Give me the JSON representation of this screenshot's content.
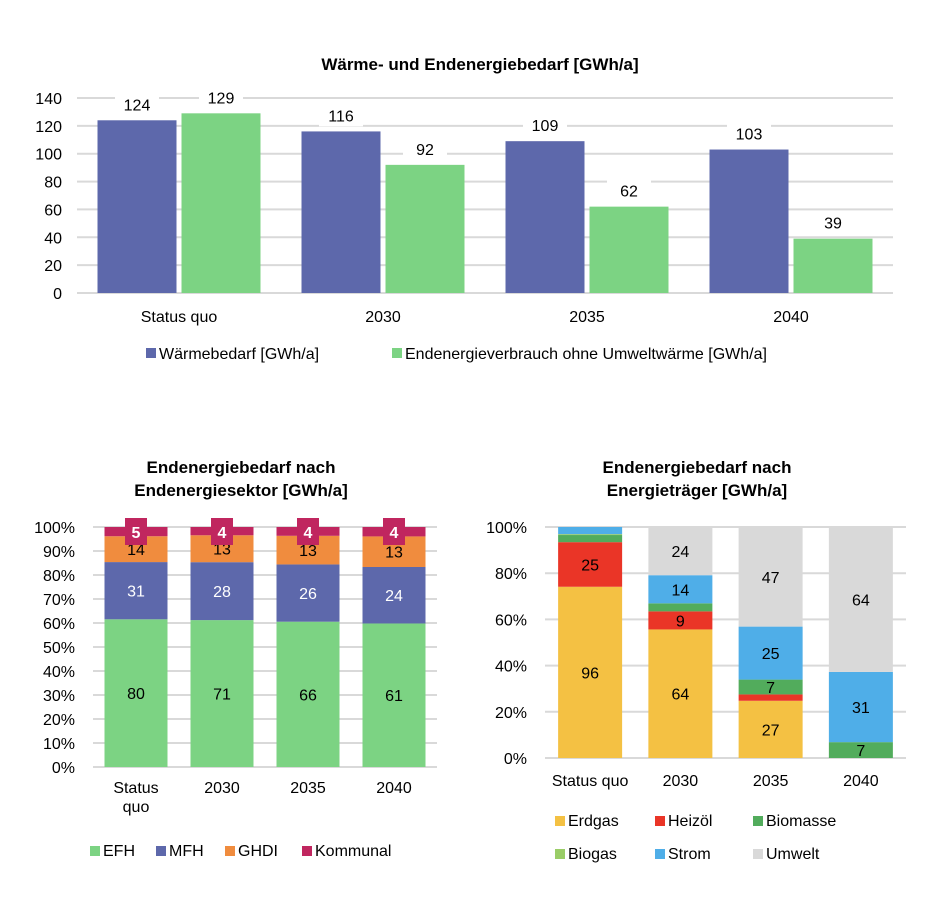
{
  "chart_data": [
    {
      "id": "chart-top",
      "type": "bar",
      "title": "Wärme- und Endenergiebedarf [GWh/a]",
      "categories": [
        "Status quo",
        "2030",
        "2035",
        "2040"
      ],
      "series": [
        {
          "name": "Wärmebedarf [GWh/a]",
          "color": "#5D68AB",
          "values": [
            124,
            116,
            109,
            103
          ]
        },
        {
          "name": "Endenergieverbrauch ohne Umweltwärme [GWh/a]",
          "color": "#7CD383",
          "values": [
            129,
            92,
            62,
            39
          ]
        }
      ],
      "ylim": [
        0,
        140
      ],
      "yticks": [
        "0",
        "20",
        "40",
        "60",
        "80",
        "100",
        "120",
        "140"
      ],
      "xlabel": "",
      "ylabel": "",
      "grid": true,
      "legend": "bottom"
    },
    {
      "id": "chart-left",
      "type": "bar",
      "stacked": "percent",
      "title": [
        "Endenergiebedarf nach",
        "Endenergiesektor [GWh/a]"
      ],
      "categories": [
        [
          "Status",
          "quo"
        ],
        [
          "2030"
        ],
        [
          "2035"
        ],
        [
          "2040"
        ]
      ],
      "series": [
        {
          "name": "EFH",
          "color": "#7CD383",
          "label_color": "#000000",
          "values": [
            80,
            71,
            66,
            61
          ]
        },
        {
          "name": "MFH",
          "color": "#5D68AB",
          "label_color": "#ffffff",
          "values": [
            31,
            28,
            26,
            24
          ]
        },
        {
          "name": "GHDI",
          "color": "#F08C3E",
          "label_color": "#000000",
          "values": [
            14,
            13,
            13,
            13
          ]
        },
        {
          "name": "Kommunal",
          "color": "#C0265F",
          "label_color": "#ffffff",
          "values": [
            5,
            4,
            4,
            4
          ]
        }
      ],
      "yticks": [
        "0%",
        "10%",
        "20%",
        "30%",
        "40%",
        "50%",
        "60%",
        "70%",
        "80%",
        "90%",
        "100%"
      ],
      "grid": true,
      "legend": "bottom"
    },
    {
      "id": "chart-right",
      "type": "bar",
      "stacked": "percent",
      "title": [
        "Endenergiebedarf nach",
        "Energieträger [GWh/a]"
      ],
      "categories": [
        [
          "Status quo"
        ],
        [
          "2030"
        ],
        [
          "2035"
        ],
        [
          "2040"
        ]
      ],
      "series": [
        {
          "name": "Erdgas",
          "color": "#F4C143",
          "values": [
            96,
            64,
            27,
            0
          ],
          "labels": [
            "96",
            "64",
            "27",
            ""
          ]
        },
        {
          "name": "Heizöl",
          "color": "#EA3527",
          "values": [
            25,
            9,
            3,
            0
          ],
          "labels": [
            "25",
            "9",
            "",
            ""
          ]
        },
        {
          "name": "Biomasse",
          "color": "#52AC5C",
          "values": [
            4,
            4,
            7,
            7
          ],
          "labels": [
            "",
            "",
            "7",
            "7"
          ]
        },
        {
          "name": "Biogas",
          "color": "#9ACD67",
          "values": [
            0.5,
            0,
            0,
            0
          ],
          "labels": [
            "",
            "",
            "",
            ""
          ]
        },
        {
          "name": "Strom",
          "color": "#4FAEE8",
          "values": [
            4,
            14,
            25,
            31
          ],
          "labels": [
            "",
            "14",
            "25",
            "31"
          ]
        },
        {
          "name": "Umwelt",
          "color": "#D9D9D9",
          "values": [
            0,
            24,
            47,
            64
          ],
          "labels": [
            "",
            "24",
            "47",
            "64"
          ]
        }
      ],
      "yticks": [
        "0%",
        "20%",
        "40%",
        "60%",
        "80%",
        "100%"
      ],
      "grid": true,
      "legend": "bottom"
    }
  ]
}
